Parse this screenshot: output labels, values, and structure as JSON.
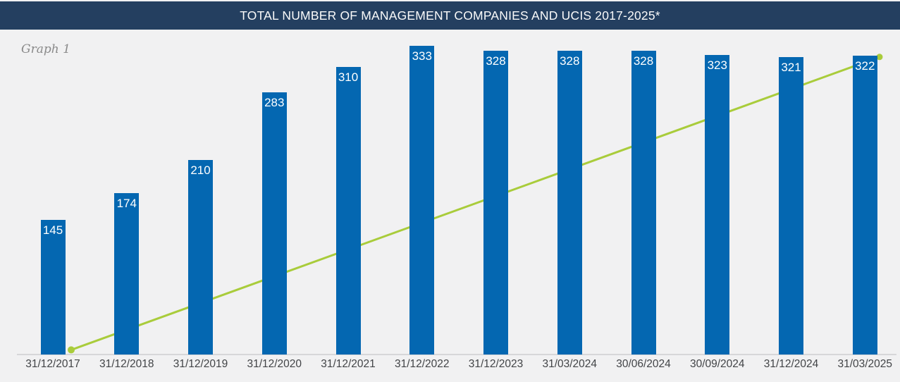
{
  "header": {
    "title": "TOTAL NUMBER OF MANAGEMENT COMPANIES AND UCIS 2017-2025*"
  },
  "graph_label": "Graph 1",
  "colors": {
    "header_bg": "#243F60",
    "background": "#F1F1F2",
    "bar": "#0467B1",
    "trend_line": "#A9CC3B",
    "axis_line": "#D7D7D9",
    "value_label": "#FFFFFF",
    "tick_label": "#424447",
    "graph_label": "#8A8A8A"
  },
  "chart_data": {
    "type": "bar",
    "title": "TOTAL NUMBER OF MANAGEMENT COMPANIES AND UCIS 2017-2025*",
    "categories": [
      "31/12/2017",
      "31/12/2018",
      "31/12/2019",
      "31/12/2020",
      "31/12/2021",
      "31/12/2022",
      "31/12/2023",
      "31/03/2024",
      "30/06/2024",
      "30/09/2024",
      "31/12/2024",
      "31/03/2025"
    ],
    "values": [
      145,
      174,
      210,
      283,
      310,
      333,
      328,
      328,
      328,
      323,
      321,
      322
    ],
    "xlabel": "",
    "ylabel": "",
    "ylim": [
      0,
      348
    ],
    "grid": false,
    "legend": "none",
    "value_labels": "inside-top",
    "trendline": {
      "shape": "straight-line-behind-bars",
      "start_value": 5,
      "end_value": 321,
      "start_marker": "filled-circle",
      "end_marker": "filled-circle"
    }
  }
}
